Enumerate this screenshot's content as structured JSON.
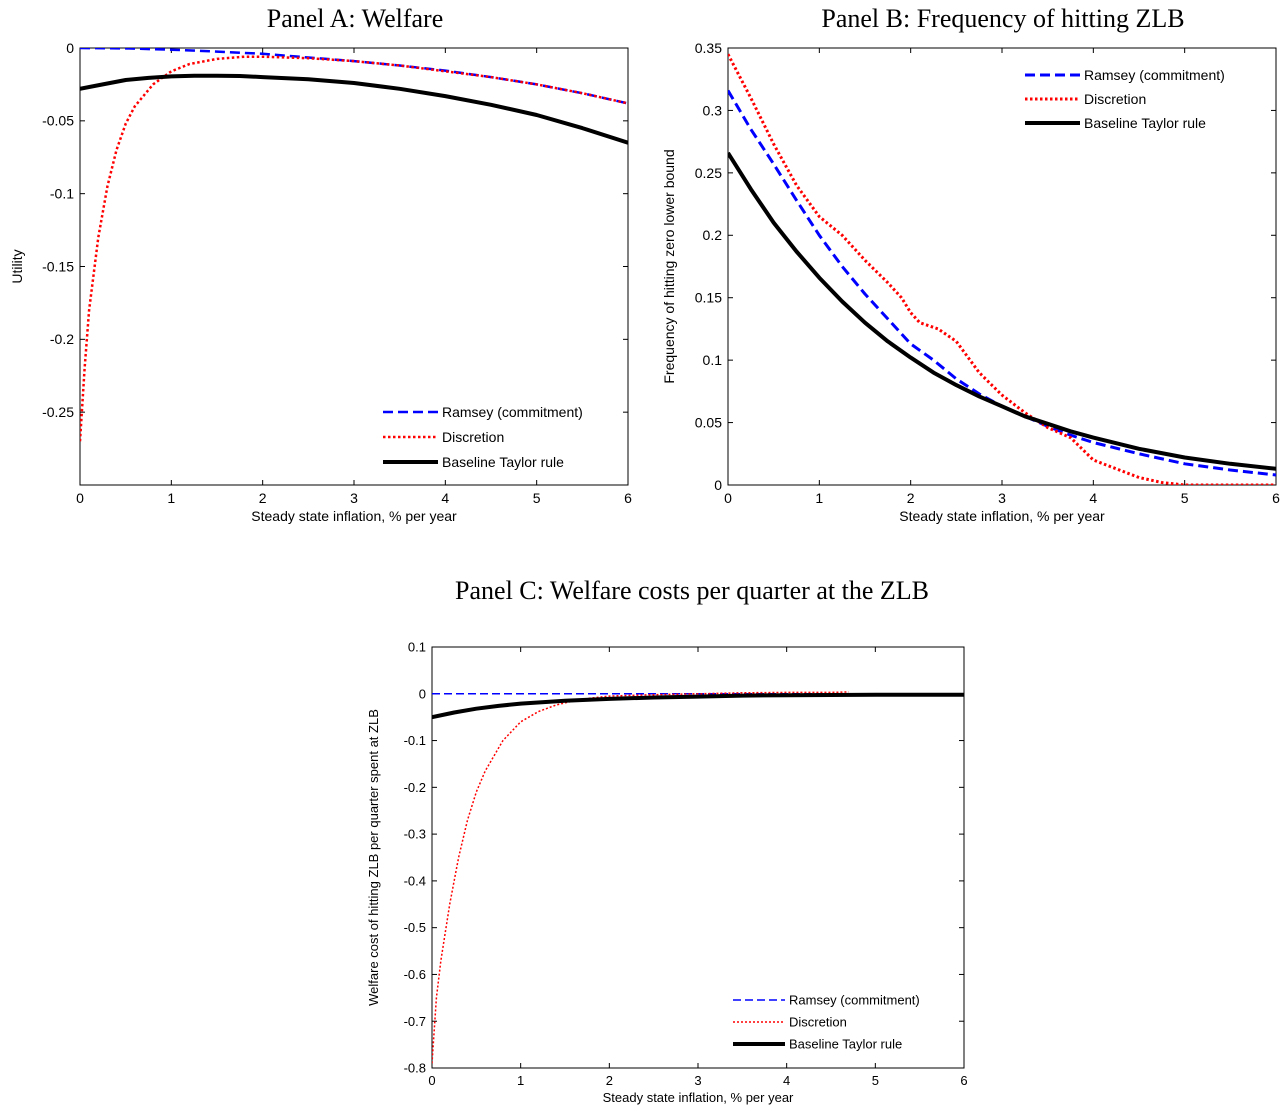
{
  "panels": {
    "a": {
      "title": "Panel A: Welfare"
    },
    "b": {
      "title": "Panel B: Frequency of hitting ZLB"
    },
    "c": {
      "title": "Panel C: Welfare costs per quarter at the ZLB"
    }
  },
  "colors": {
    "ramsey": "#0000ff",
    "discretion": "#ff0000",
    "taylor": "#000000"
  },
  "chart_data": [
    {
      "id": "a",
      "type": "line",
      "title": "Panel A: Welfare",
      "xlabel": "Steady state inflation, % per year",
      "ylabel": "Utility",
      "xlim": [
        0,
        6
      ],
      "ylim": [
        -0.3,
        0
      ],
      "xticks": [
        0,
        1,
        2,
        3,
        4,
        5,
        6
      ],
      "yticks": [
        0,
        -0.05,
        -0.1,
        -0.15,
        -0.2,
        -0.25
      ],
      "yticklabels": [
        "0",
        "-0.05",
        "-0.1",
        "-0.15",
        "-0.2",
        "-0.25"
      ],
      "grid": false,
      "legend": "bottom-right",
      "series": [
        {
          "name": "Ramsey (commitment)",
          "style": "dashed",
          "x": [
            0,
            0.5,
            1,
            1.5,
            2,
            2.5,
            3,
            3.5,
            4,
            4.5,
            5,
            5.5,
            6
          ],
          "y": [
            0,
            -0.0003,
            -0.0012,
            -0.0025,
            -0.004,
            -0.0065,
            -0.009,
            -0.012,
            -0.0155,
            -0.02,
            -0.025,
            -0.031,
            -0.038
          ]
        },
        {
          "name": "Discretion",
          "style": "dotted",
          "x": [
            0,
            0.05,
            0.1,
            0.2,
            0.3,
            0.4,
            0.5,
            0.6,
            0.8,
            1,
            1.2,
            1.5,
            1.8,
            2,
            2.5,
            3,
            3.5,
            4,
            4.5,
            5,
            5.5,
            6
          ],
          "y": [
            -0.27,
            -0.22,
            -0.18,
            -0.13,
            -0.095,
            -0.07,
            -0.052,
            -0.04,
            -0.025,
            -0.016,
            -0.011,
            -0.0075,
            -0.006,
            -0.006,
            -0.007,
            -0.009,
            -0.012,
            -0.016,
            -0.02,
            -0.025,
            -0.031,
            -0.038
          ]
        },
        {
          "name": "Baseline Taylor rule",
          "style": "solid",
          "x": [
            0,
            0.25,
            0.5,
            0.75,
            1,
            1.25,
            1.5,
            1.75,
            2,
            2.5,
            3,
            3.5,
            4,
            4.5,
            5,
            5.5,
            6
          ],
          "y": [
            -0.028,
            -0.025,
            -0.022,
            -0.0205,
            -0.0195,
            -0.019,
            -0.019,
            -0.0192,
            -0.02,
            -0.0215,
            -0.024,
            -0.028,
            -0.033,
            -0.039,
            -0.046,
            -0.055,
            -0.065
          ]
        }
      ]
    },
    {
      "id": "b",
      "type": "line",
      "title": "Panel B: Frequency of hitting ZLB",
      "xlabel": "Steady state inflation, % per year",
      "ylabel": "Frequency of hitting zero lower bound",
      "xlim": [
        0,
        6
      ],
      "ylim": [
        0,
        0.35
      ],
      "xticks": [
        0,
        1,
        2,
        3,
        4,
        5,
        6
      ],
      "yticks": [
        0,
        0.05,
        0.1,
        0.15,
        0.2,
        0.25,
        0.3,
        0.35
      ],
      "yticklabels": [
        "0",
        "0.05",
        "0.1",
        "0.15",
        "0.2",
        "0.25",
        "0.3",
        "0.35"
      ],
      "grid": false,
      "legend": "top-right",
      "series": [
        {
          "name": "Ramsey (commitment)",
          "style": "dashed",
          "x": [
            0,
            0.25,
            0.5,
            0.75,
            1,
            1.25,
            1.5,
            1.75,
            2,
            2.25,
            2.5,
            2.75,
            3,
            3.25,
            3.5,
            3.75,
            4,
            4.5,
            5,
            5.5,
            6
          ],
          "y": [
            0.316,
            0.285,
            0.257,
            0.228,
            0.2,
            0.175,
            0.153,
            0.133,
            0.113,
            0.1,
            0.085,
            0.073,
            0.063,
            0.055,
            0.047,
            0.04,
            0.034,
            0.025,
            0.017,
            0.012,
            0.008
          ]
        },
        {
          "name": "Discretion",
          "style": "dotted",
          "x": [
            0,
            0.25,
            0.5,
            0.75,
            1,
            1.25,
            1.5,
            1.75,
            1.9,
            2,
            2.1,
            2.3,
            2.5,
            2.75,
            3,
            3.25,
            3.5,
            3.75,
            4,
            4.25,
            4.5,
            4.75,
            5,
            5.5,
            6
          ],
          "y": [
            0.345,
            0.31,
            0.273,
            0.24,
            0.215,
            0.2,
            0.18,
            0.162,
            0.15,
            0.138,
            0.13,
            0.125,
            0.115,
            0.09,
            0.072,
            0.058,
            0.046,
            0.038,
            0.02,
            0.013,
            0.006,
            0.002,
            0,
            0,
            0
          ]
        },
        {
          "name": "Baseline Taylor rule",
          "style": "solid",
          "x": [
            0,
            0.25,
            0.5,
            0.75,
            1,
            1.25,
            1.5,
            1.75,
            2,
            2.25,
            2.5,
            2.75,
            3,
            3.25,
            3.5,
            3.75,
            4,
            4.5,
            5,
            5.5,
            6
          ],
          "y": [
            0.266,
            0.237,
            0.21,
            0.187,
            0.166,
            0.147,
            0.13,
            0.115,
            0.102,
            0.09,
            0.08,
            0.071,
            0.063,
            0.055,
            0.049,
            0.043,
            0.038,
            0.029,
            0.022,
            0.017,
            0.013
          ]
        }
      ]
    },
    {
      "id": "c",
      "type": "line",
      "title": "Panel C: Welfare costs per quarter at the ZLB",
      "xlabel": "Steady state inflation, % per year",
      "ylabel": "Welfare cost of hitting ZLB per quarter spent at ZLB",
      "xlim": [
        0,
        6
      ],
      "ylim": [
        -0.8,
        0.1
      ],
      "xticks": [
        0,
        1,
        2,
        3,
        4,
        5,
        6
      ],
      "yticks": [
        0.1,
        0,
        -0.1,
        -0.2,
        -0.3,
        -0.4,
        -0.5,
        -0.6,
        -0.7,
        -0.8
      ],
      "yticklabels": [
        "0.1",
        "0",
        "-0.1",
        "-0.2",
        "-0.3",
        "-0.4",
        "-0.5",
        "-0.6",
        "-0.7",
        "-0.8"
      ],
      "grid": false,
      "legend": "bottom-right",
      "series": [
        {
          "name": "Ramsey (commitment)",
          "style": "dashed",
          "x": [
            0,
            1,
            2,
            3,
            4,
            5,
            6
          ],
          "y": [
            0,
            0,
            0,
            0,
            0,
            0,
            0
          ]
        },
        {
          "name": "Discretion",
          "style": "dotted",
          "x": [
            0,
            0.05,
            0.1,
            0.2,
            0.3,
            0.4,
            0.5,
            0.6,
            0.8,
            1,
            1.2,
            1.4,
            1.6,
            1.8,
            2,
            2.5,
            3,
            3.5,
            4,
            4.5,
            4.7
          ],
          "y": [
            -0.79,
            -0.65,
            -0.57,
            -0.45,
            -0.35,
            -0.27,
            -0.21,
            -0.165,
            -0.1,
            -0.06,
            -0.038,
            -0.024,
            -0.015,
            -0.009,
            -0.005,
            -0.002,
            0,
            0.002,
            0.003,
            0.003,
            0.004
          ]
        },
        {
          "name": "Baseline Taylor rule",
          "style": "solid",
          "x": [
            0,
            0.25,
            0.5,
            0.75,
            1,
            1.5,
            2,
            2.5,
            3,
            3.5,
            4,
            5,
            6
          ],
          "y": [
            -0.05,
            -0.04,
            -0.032,
            -0.026,
            -0.021,
            -0.015,
            -0.011,
            -0.008,
            -0.006,
            -0.004,
            -0.003,
            -0.002,
            -0.002
          ]
        }
      ]
    }
  ]
}
